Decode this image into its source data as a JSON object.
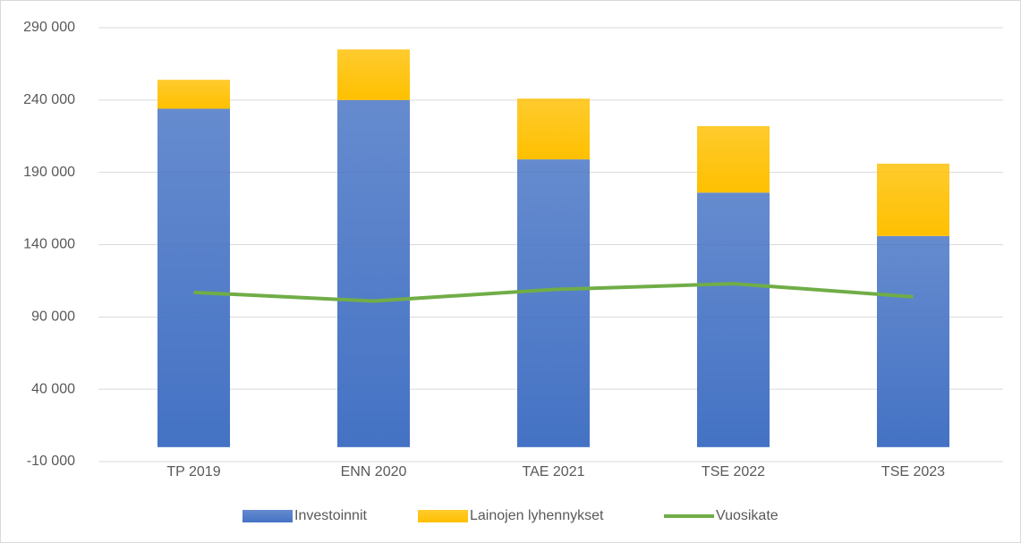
{
  "chart_data": {
    "type": "bar",
    "categories": [
      "TP 2019",
      "ENN 2020",
      "TAE 2021",
      "TSE 2022",
      "TSE 2023"
    ],
    "series": [
      {
        "name": "Investoinnit",
        "type": "bar",
        "color": "#4472c4",
        "values": [
          234000,
          240000,
          199000,
          176000,
          146000
        ]
      },
      {
        "name": "Lainojen lyhennykset",
        "type": "bar",
        "color": "#ffc000",
        "values": [
          20000,
          35000,
          42000,
          46000,
          50000
        ]
      },
      {
        "name": "Vuosikate",
        "type": "line",
        "color": "#70ad47",
        "values": [
          107000,
          101000,
          109000,
          113000,
          104000
        ]
      }
    ],
    "stacked": true,
    "ylim": [
      -10000,
      290000
    ],
    "yticks": [
      {
        "value": -10000,
        "label": "-10 000"
      },
      {
        "value": 40000,
        "label": "40 000"
      },
      {
        "value": 90000,
        "label": "90 000"
      },
      {
        "value": 140000,
        "label": "140 000"
      },
      {
        "value": 190000,
        "label": "190 000"
      },
      {
        "value": 240000,
        "label": "240 000"
      },
      {
        "value": 290000,
        "label": "290 000"
      }
    ],
    "grid": true,
    "legend": "bottom"
  }
}
